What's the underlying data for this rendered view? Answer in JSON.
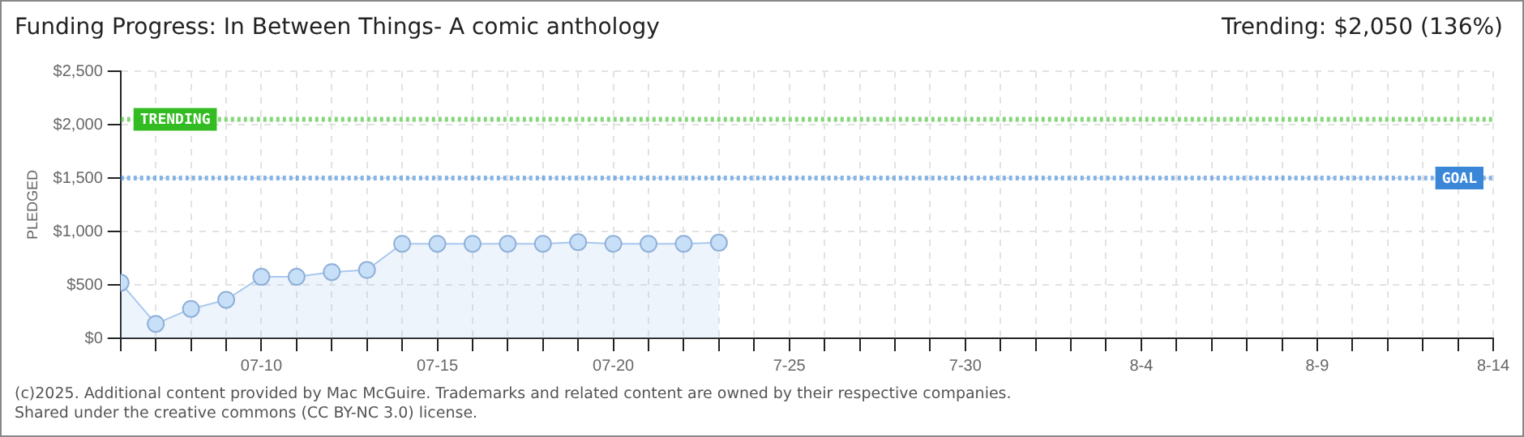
{
  "chart_data": {
    "type": "area",
    "title": "Funding Progress: In Between Things- A comic anthology",
    "subtitle": "Trending: $2,050 (136%)",
    "ylabel": "PLEDGED",
    "x": [
      "--07-06",
      "--07-07",
      "--07-08",
      "--07-09",
      "--07-10",
      "--07-11",
      "--07-12",
      "--07-13",
      "--07-14",
      "--07-15",
      "--07-16",
      "--07-17",
      "--07-18",
      "--07-19",
      "--07-20",
      "--07-21",
      "--07-22",
      "--07-23"
    ],
    "series": [
      {
        "color": "#a8c8ee",
        "values": [
          520,
          135,
          275,
          360,
          575,
          575,
          620,
          640,
          885,
          885,
          885,
          885,
          885,
          900,
          885,
          885,
          885,
          895
        ]
      }
    ],
    "xlim": [
      "--07-06",
      "--08-14"
    ],
    "xticks": [
      {
        "value": "--07-06",
        "label": null
      },
      {
        "value": "--07-07",
        "label": null
      },
      {
        "value": "--07-08",
        "label": null
      },
      {
        "value": "--07-09",
        "label": null
      },
      {
        "value": "--07-10",
        "label": "07-10"
      },
      {
        "value": "--07-11",
        "label": null
      },
      {
        "value": "--07-12",
        "label": null
      },
      {
        "value": "--07-13",
        "label": null
      },
      {
        "value": "--07-14",
        "label": null
      },
      {
        "value": "--07-15",
        "label": "07-15"
      },
      {
        "value": "--07-16",
        "label": null
      },
      {
        "value": "--07-17",
        "label": null
      },
      {
        "value": "--07-18",
        "label": null
      },
      {
        "value": "--07-19",
        "label": null
      },
      {
        "value": "--07-20",
        "label": "07-20"
      },
      {
        "value": "--07-21",
        "label": null
      },
      {
        "value": "--07-22",
        "label": null
      },
      {
        "value": "--07-23",
        "label": null
      },
      {
        "value": "--07-24",
        "label": null
      },
      {
        "value": "--07-25",
        "label": "7-25"
      },
      {
        "value": "--07-26",
        "label": null
      },
      {
        "value": "--07-27",
        "label": null
      },
      {
        "value": "--07-28",
        "label": null
      },
      {
        "value": "--07-29",
        "label": null
      },
      {
        "value": "--07-30",
        "label": "7-30"
      },
      {
        "value": "--07-31",
        "label": null
      },
      {
        "value": "--08-01",
        "label": null
      },
      {
        "value": "--08-02",
        "label": null
      },
      {
        "value": "--08-03",
        "label": null
      },
      {
        "value": "--08-04",
        "label": "8-4"
      },
      {
        "value": "--08-05",
        "label": null
      },
      {
        "value": "--08-06",
        "label": null
      },
      {
        "value": "--08-07",
        "label": null
      },
      {
        "value": "--08-08",
        "label": null
      },
      {
        "value": "--08-09",
        "label": "8-9"
      },
      {
        "value": "--08-10",
        "label": null
      },
      {
        "value": "--08-11",
        "label": null
      },
      {
        "value": "--08-12",
        "label": null
      },
      {
        "value": "--08-13",
        "label": null
      },
      {
        "value": "--08-14",
        "label": "8-14"
      }
    ],
    "ylim": [
      0,
      2500
    ],
    "yticks": [
      {
        "value": 0,
        "label": "$0"
      },
      {
        "value": 500,
        "label": "$500"
      },
      {
        "value": 1000,
        "label": "$1,000"
      },
      {
        "value": 1500,
        "label": "$1,500"
      },
      {
        "value": 2000,
        "label": "$2,000"
      },
      {
        "value": 2500,
        "label": "$2,500"
      }
    ],
    "ref_lines": [
      {
        "axis": "y",
        "value": 2050,
        "label": "TRENDING",
        "color": "#33bb22",
        "line_style": "dotted"
      },
      {
        "axis": "y",
        "value": 1500,
        "label": "GOAL",
        "color": "#3a87d8",
        "line_style": "dotted"
      }
    ],
    "grid": true,
    "legend": false,
    "marker": "circle",
    "line_style": "solid",
    "annotations": [
      "(c)2025. Additional content provided by Mac McGuire. Trademarks and related content are owned by their respective companies.",
      "Shared under the creative commons (CC BY-NC 3.0) license."
    ]
  }
}
